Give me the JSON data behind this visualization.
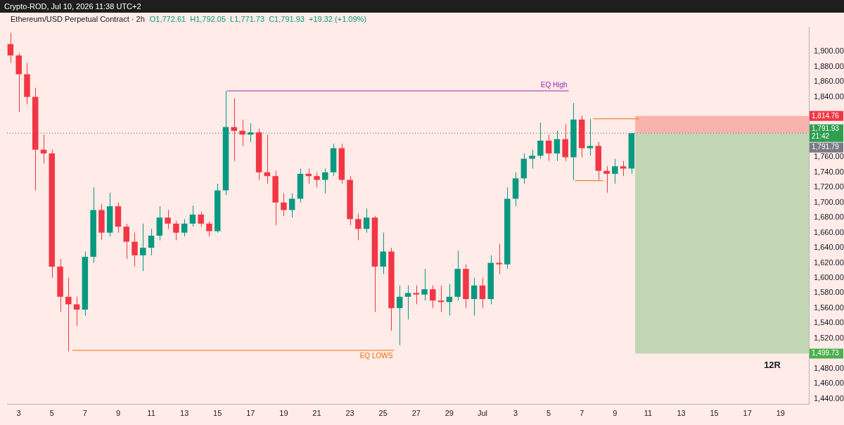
{
  "chart_data": {
    "type": "candlestick",
    "title": "Ethereum/USD Perpetual Contract · 2h",
    "subtitle": "O1,772.61  H1,792.05  L1,771.73  C1,791.93  +19.32 (+1.09%)",
    "annotations": [
      "Crypto-ROD, Jul 10, 2026 11:38 UTC+2",
      "12R"
    ],
    "x": [
      "2026-06-02T12:00",
      "2026-06-03T00:00",
      "2026-06-03T12:00",
      "2026-06-04T00:00",
      "2026-06-04T12:00",
      "2026-06-05T00:00",
      "2026-06-05T12:00",
      "2026-06-06T00:00",
      "2026-06-06T12:00",
      "2026-06-07T00:00",
      "2026-06-07T12:00",
      "2026-06-08T00:00",
      "2026-06-08T12:00",
      "2026-06-09T00:00",
      "2026-06-09T12:00",
      "2026-06-10T00:00",
      "2026-06-10T12:00",
      "2026-06-11T00:00",
      "2026-06-11T12:00",
      "2026-06-12T00:00",
      "2026-06-12T12:00",
      "2026-06-13T00:00",
      "2026-06-13T12:00",
      "2026-06-14T00:00",
      "2026-06-14T12:00",
      "2026-06-15T00:00",
      "2026-06-15T12:00",
      "2026-06-16T00:00",
      "2026-06-16T12:00",
      "2026-06-17T00:00",
      "2026-06-17T12:00",
      "2026-06-18T00:00",
      "2026-06-18T12:00",
      "2026-06-19T00:00",
      "2026-06-19T12:00",
      "2026-06-20T00:00",
      "2026-06-20T12:00",
      "2026-06-21T00:00",
      "2026-06-21T12:00",
      "2026-06-22T00:00",
      "2026-06-22T12:00",
      "2026-06-23T00:00",
      "2026-06-23T12:00",
      "2026-06-24T00:00",
      "2026-06-24T12:00",
      "2026-06-25T00:00",
      "2026-06-25T12:00",
      "2026-06-26T00:00",
      "2026-06-26T12:00",
      "2026-06-27T00:00",
      "2026-06-27T12:00",
      "2026-06-28T00:00",
      "2026-06-28T12:00",
      "2026-06-29T00:00",
      "2026-06-29T12:00",
      "2026-06-30T00:00",
      "2026-06-30T12:00",
      "2026-07-01T00:00",
      "2026-07-01T12:00",
      "2026-07-02T00:00",
      "2026-07-02T12:00",
      "2026-07-03T00:00",
      "2026-07-03T12:00",
      "2026-07-04T00:00",
      "2026-07-04T12:00",
      "2026-07-05T00:00",
      "2026-07-05T12:00",
      "2026-07-06T00:00",
      "2026-07-06T12:00",
      "2026-07-07T00:00",
      "2026-07-07T12:00",
      "2026-07-08T00:00",
      "2026-07-08T12:00",
      "2026-07-09T00:00",
      "2026-07-09T12:00",
      "2026-07-10T00:00"
    ],
    "ohlc": [
      [
        1910,
        1925,
        1885,
        1895
      ],
      [
        1895,
        1898,
        1820,
        1870
      ],
      [
        1870,
        1885,
        1830,
        1840
      ],
      [
        1840,
        1852,
        1716,
        1770
      ],
      [
        1770,
        1790,
        1752,
        1765
      ],
      [
        1765,
        1770,
        1600,
        1615
      ],
      [
        1615,
        1625,
        1555,
        1575
      ],
      [
        1575,
        1600,
        1503,
        1565
      ],
      [
        1565,
        1575,
        1536,
        1558
      ],
      [
        1558,
        1635,
        1550,
        1628
      ],
      [
        1628,
        1720,
        1620,
        1690
      ],
      [
        1690,
        1698,
        1650,
        1660
      ],
      [
        1660,
        1713,
        1655,
        1695
      ],
      [
        1695,
        1700,
        1660,
        1668
      ],
      [
        1668,
        1672,
        1625,
        1648
      ],
      [
        1648,
        1660,
        1615,
        1630
      ],
      [
        1630,
        1672,
        1609,
        1640
      ],
      [
        1640,
        1665,
        1630,
        1656
      ],
      [
        1656,
        1695,
        1650,
        1680
      ],
      [
        1680,
        1690,
        1665,
        1672
      ],
      [
        1672,
        1676,
        1650,
        1660
      ],
      [
        1660,
        1678,
        1655,
        1672
      ],
      [
        1672,
        1696,
        1668,
        1684
      ],
      [
        1684,
        1688,
        1668,
        1672
      ],
      [
        1672,
        1675,
        1655,
        1662
      ],
      [
        1662,
        1725,
        1660,
        1716
      ],
      [
        1716,
        1848,
        1710,
        1800
      ],
      [
        1800,
        1838,
        1755,
        1795
      ],
      [
        1795,
        1810,
        1775,
        1790
      ],
      [
        1790,
        1805,
        1780,
        1793
      ],
      [
        1793,
        1798,
        1730,
        1740
      ],
      [
        1740,
        1790,
        1725,
        1735
      ],
      [
        1735,
        1742,
        1670,
        1700
      ],
      [
        1700,
        1712,
        1682,
        1690
      ],
      [
        1690,
        1712,
        1680,
        1705
      ],
      [
        1705,
        1745,
        1700,
        1738
      ],
      [
        1738,
        1745,
        1725,
        1735
      ],
      [
        1735,
        1740,
        1720,
        1730
      ],
      [
        1730,
        1745,
        1712,
        1740
      ],
      [
        1740,
        1778,
        1735,
        1772
      ],
      [
        1772,
        1778,
        1725,
        1730
      ],
      [
        1730,
        1735,
        1670,
        1678
      ],
      [
        1678,
        1685,
        1650,
        1665
      ],
      [
        1665,
        1692,
        1660,
        1680
      ],
      [
        1680,
        1682,
        1555,
        1615
      ],
      [
        1615,
        1660,
        1605,
        1635
      ],
      [
        1635,
        1640,
        1530,
        1560
      ],
      [
        1560,
        1590,
        1511,
        1575
      ],
      [
        1575,
        1590,
        1545,
        1580
      ],
      [
        1580,
        1590,
        1565,
        1578
      ],
      [
        1578,
        1612,
        1570,
        1585
      ],
      [
        1585,
        1590,
        1560,
        1570
      ],
      [
        1570,
        1590,
        1555,
        1568
      ],
      [
        1568,
        1592,
        1550,
        1575
      ],
      [
        1575,
        1636,
        1570,
        1612
      ],
      [
        1612,
        1618,
        1560,
        1572
      ],
      [
        1572,
        1600,
        1550,
        1590
      ],
      [
        1590,
        1600,
        1560,
        1572
      ],
      [
        1572,
        1630,
        1565,
        1620
      ],
      [
        1620,
        1645,
        1605,
        1618
      ],
      [
        1618,
        1720,
        1612,
        1705
      ],
      [
        1705,
        1740,
        1695,
        1732
      ],
      [
        1732,
        1765,
        1725,
        1758
      ],
      [
        1758,
        1770,
        1745,
        1762
      ],
      [
        1762,
        1806,
        1758,
        1782
      ],
      [
        1782,
        1790,
        1755,
        1765
      ],
      [
        1765,
        1795,
        1755,
        1784
      ],
      [
        1784,
        1804,
        1755,
        1760
      ],
      [
        1760,
        1832,
        1730,
        1810
      ],
      [
        1810,
        1815,
        1760,
        1772
      ],
      [
        1772,
        1811,
        1762,
        1775
      ],
      [
        1775,
        1780,
        1730,
        1742
      ],
      [
        1742,
        1748,
        1713,
        1738
      ],
      [
        1738,
        1758,
        1725,
        1748
      ],
      [
        1748,
        1755,
        1735,
        1745
      ],
      [
        1745,
        1792.05,
        1738,
        1791.93
      ]
    ],
    "colors": [
      "#f23645",
      "#f23645",
      "#f23645",
      "#f23645",
      "#f23645",
      "#f23645",
      "#f23645",
      "#f23645",
      "#f23645",
      "#089981",
      "#089981",
      "#f23645",
      "#089981",
      "#f23645",
      "#f23645",
      "#f23645",
      "#089981",
      "#089981",
      "#089981",
      "#f23645",
      "#f23645",
      "#089981",
      "#089981",
      "#f23645",
      "#f23645",
      "#089981",
      "#089981",
      "#f23645",
      "#f23645",
      "#089981",
      "#f23645",
      "#f23645",
      "#f23645",
      "#f23645",
      "#089981",
      "#089981",
      "#f23645",
      "#f23645",
      "#089981",
      "#089981",
      "#f23645",
      "#f23645",
      "#f23645",
      "#089981",
      "#f23645",
      "#089981",
      "#f23645",
      "#089981",
      "#089981",
      "#f23645",
      "#089981",
      "#f23645",
      "#f23645",
      "#089981",
      "#089981",
      "#f23645",
      "#089981",
      "#f23645",
      "#089981",
      "#f23645",
      "#089981",
      "#089981",
      "#089981",
      "#089981",
      "#089981",
      "#f23645",
      "#089981",
      "#f23645",
      "#089981",
      "#f23645",
      "#089981",
      "#f23645",
      "#f23645",
      "#089981",
      "#f23645",
      "#089981"
    ],
    "series": [
      {
        "type": "line",
        "name": "EQ High",
        "color": "#9c27b0",
        "x": [
          "2026-06-15T14:00",
          "2026-07-06T05:00"
        ],
        "values": [
          1848,
          1848
        ]
      },
      {
        "type": "line",
        "name": "EQ LOWS",
        "color": "#ef6c00",
        "x": [
          "2026-06-06T06:00",
          "2026-06-25T16:00"
        ],
        "values": [
          1504,
          1504
        ]
      },
      {
        "type": "line",
        "color": "#ef6c00",
        "x": [
          "2026-07-07T17:00",
          "2026-07-10T11:00"
        ],
        "values": [
          1811,
          1811
        ]
      },
      {
        "type": "line",
        "color": "#ef6c00",
        "x": [
          "2026-07-06T14:00",
          "2026-07-08T07:00"
        ],
        "values": [
          1729,
          1729
        ]
      }
    ],
    "ref_lines": [
      {
        "axis": "y",
        "value": 1791.93,
        "label": "1,791.93\n21:42",
        "color": "#2e9e4f",
        "line_style": "dotted"
      },
      {
        "axis": "y",
        "value": 1791.79,
        "label": "1,791.79",
        "color": "#787b86",
        "line_style": "dotted"
      }
    ],
    "bands": [
      {
        "axis": "y",
        "from": 1791.93,
        "to": 1814.76,
        "label": "1,814.76",
        "color": "#f9b3ad"
      },
      {
        "axis": "y",
        "from": 1499.73,
        "to": 1791.93,
        "label": "1,499.73",
        "color": "#c2d6b4"
      }
    ],
    "xlim": [
      "2026-06-02T07:00",
      "2026-07-20T17:00"
    ],
    "xticks": [
      {
        "value": "2026-06-03",
        "label": "3"
      },
      {
        "value": "2026-06-05",
        "label": "5"
      },
      {
        "value": "2026-06-07",
        "label": "7"
      },
      {
        "value": "2026-06-09",
        "label": "9"
      },
      {
        "value": "2026-06-11",
        "label": "11"
      },
      {
        "value": "2026-06-13",
        "label": "13"
      },
      {
        "value": "2026-06-15",
        "label": "15"
      },
      {
        "value": "2026-06-17",
        "label": "17"
      },
      {
        "value": "2026-06-19",
        "label": "19"
      },
      {
        "value": "2026-06-21",
        "label": "21"
      },
      {
        "value": "2026-06-23",
        "label": "23"
      },
      {
        "value": "2026-06-25",
        "label": "25"
      },
      {
        "value": "2026-06-27",
        "label": "27"
      },
      {
        "value": "2026-06-29",
        "label": "29"
      },
      {
        "value": "2026-07-01",
        "label": "Jul"
      },
      {
        "value": "2026-07-03",
        "label": "3"
      },
      {
        "value": "2026-07-05",
        "label": "5"
      },
      {
        "value": "2026-07-07",
        "label": "7"
      },
      {
        "value": "2026-07-09",
        "label": "9"
      },
      {
        "value": "2026-07-11",
        "label": "11"
      },
      {
        "value": "2026-07-13",
        "label": "13"
      },
      {
        "value": "2026-07-15",
        "label": "15"
      },
      {
        "value": "2026-07-17",
        "label": "17"
      },
      {
        "value": "2026-07-19",
        "label": "19"
      }
    ],
    "ylim": [
      1433,
      1933
    ],
    "yticks": [
      {
        "value": 1440,
        "label": "1,440.00"
      },
      {
        "value": 1460,
        "label": "1,460.00"
      },
      {
        "value": 1480,
        "label": "1,480.00"
      },
      {
        "value": 1520,
        "label": "1,520.00"
      },
      {
        "value": 1540,
        "label": "1,540.00"
      },
      {
        "value": 1560,
        "label": "1,560.00"
      },
      {
        "value": 1580,
        "label": "1,580.00"
      },
      {
        "value": 1600,
        "label": "1,600.00"
      },
      {
        "value": 1620,
        "label": "1,620.00"
      },
      {
        "value": 1640,
        "label": "1,640.00"
      },
      {
        "value": 1660,
        "label": "1,660.00"
      },
      {
        "value": 1680,
        "label": "1,680.00"
      },
      {
        "value": 1700,
        "label": "1,700.00"
      },
      {
        "value": 1720,
        "label": "1,720.00"
      },
      {
        "value": 1740,
        "label": "1,740.00"
      },
      {
        "value": 1760,
        "label": "1,760.00"
      },
      {
        "value": 1840,
        "label": "1,840.00"
      },
      {
        "value": 1860,
        "label": "1,860.00"
      },
      {
        "value": 1880,
        "label": "1,880.00"
      },
      {
        "value": 1900,
        "label": "1,900.00"
      }
    ],
    "grid": false,
    "legend": false
  }
}
